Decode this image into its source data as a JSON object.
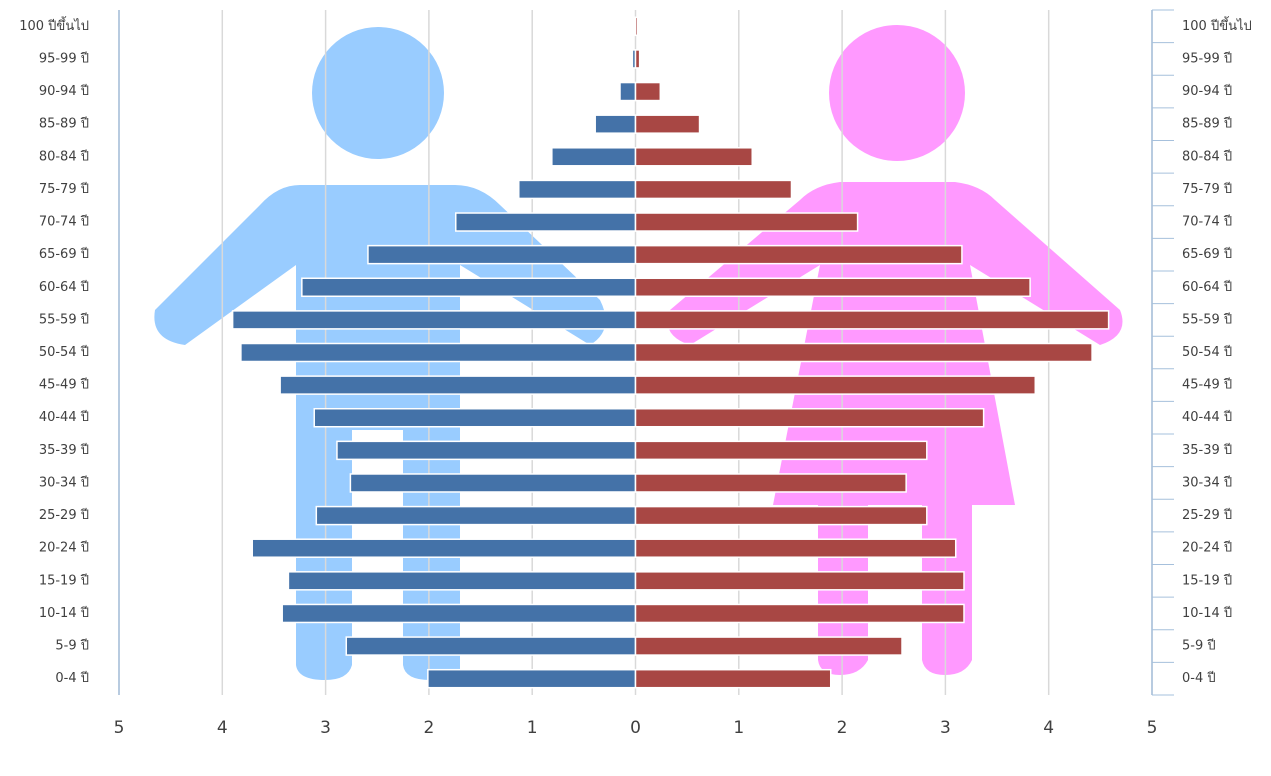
{
  "chart_data": {
    "type": "pyramid",
    "categories": [
      "0-4 ปี",
      "5-9 ปี",
      "10-14 ปี",
      "15-19 ปี",
      "20-24 ปี",
      "25-29 ปี",
      "30-34 ปี",
      "35-39 ปี",
      "40-44 ปี",
      "45-49 ปี",
      "50-54 ปี",
      "55-59 ปี",
      "60-64 ปี",
      "65-69 ปี",
      "70-74 ปี",
      "75-79 ปี",
      "80-84 ปี",
      "85-89 ปี",
      "90-94 ปี",
      "95-99 ปี",
      "100 ปีขึ้นไป"
    ],
    "series": [
      {
        "color": "#4472a8",
        "side": "left",
        "values": [
          2.01,
          2.8,
          3.42,
          3.36,
          3.71,
          3.09,
          2.76,
          2.89,
          3.11,
          3.44,
          3.82,
          3.9,
          3.23,
          2.59,
          1.74,
          1.13,
          0.81,
          0.39,
          0.15,
          0.03,
          0.01
        ]
      },
      {
        "color": "#a84744",
        "side": "right",
        "values": [
          1.89,
          2.58,
          3.18,
          3.18,
          3.1,
          2.82,
          2.62,
          2.82,
          3.37,
          3.87,
          4.42,
          4.58,
          3.82,
          3.16,
          2.15,
          1.51,
          1.13,
          0.62,
          0.24,
          0.04,
          0.02
        ]
      }
    ],
    "xlim": [
      -5,
      5
    ],
    "xticks": [
      {
        "value": -5,
        "label": "5"
      },
      {
        "value": -4,
        "label": "4"
      },
      {
        "value": -3,
        "label": "3"
      },
      {
        "value": -2,
        "label": "2"
      },
      {
        "value": -1,
        "label": "1"
      },
      0,
      1,
      2,
      3,
      4,
      5
    ],
    "grid": true
  }
}
